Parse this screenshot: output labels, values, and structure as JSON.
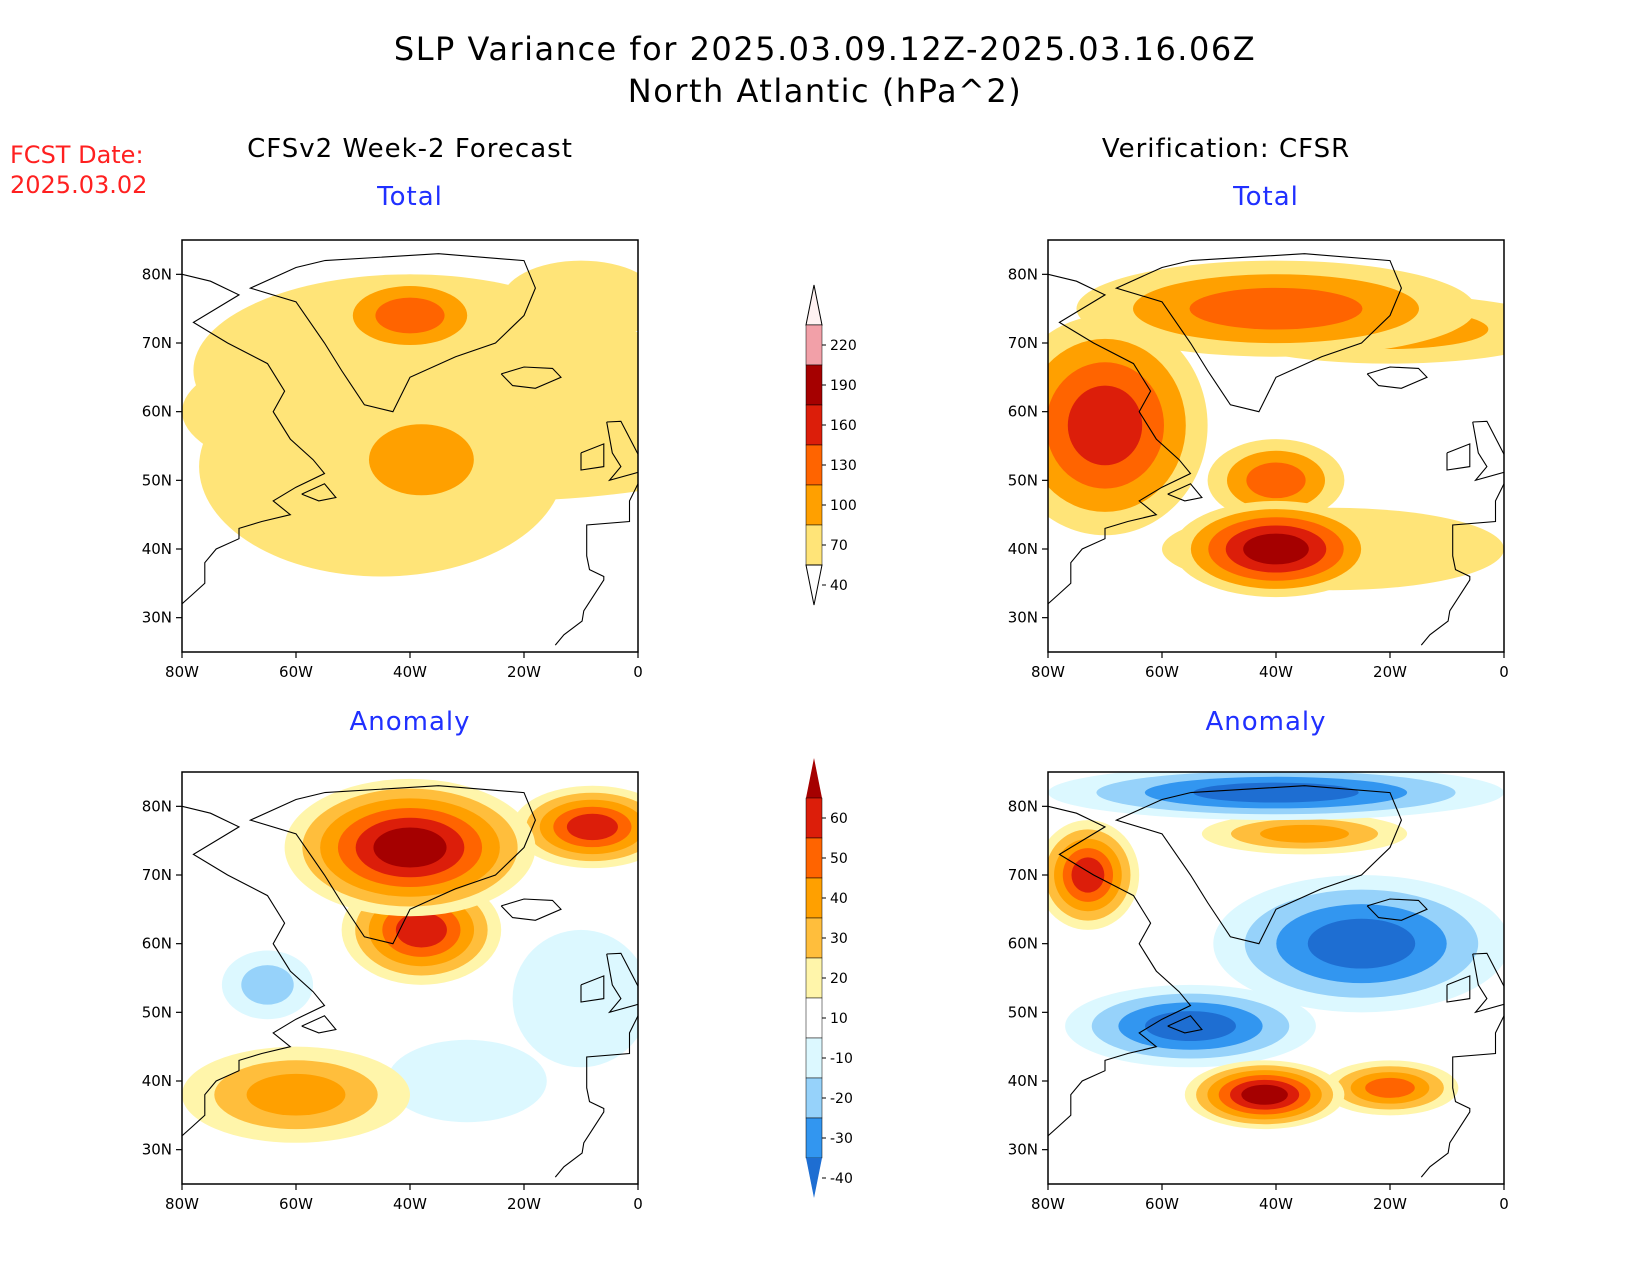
{
  "header": {
    "title_line1": "SLP Variance for 2025.03.09.12Z-2025.03.16.06Z",
    "title_line2": "North Atlantic (hPa^2)",
    "fcst_label": "FCST Date:",
    "fcst_date": "2025.03.02",
    "left_column": "CFSv2 Week-2 Forecast",
    "right_column": "Verification: CFSR"
  },
  "chart_data": [
    {
      "type": "heatmap",
      "id": "fcst-total",
      "title": "Total",
      "x_ticks": [
        "80W",
        "60W",
        "40W",
        "20W",
        "0"
      ],
      "y_ticks": [
        "80N",
        "70N",
        "60N",
        "50N",
        "40N",
        "30N"
      ],
      "lon_range": [
        -80,
        0
      ],
      "lat_range": [
        25,
        85
      ],
      "scale": "total",
      "blobs": [
        {
          "lon": -40,
          "lat": 66,
          "rx": 38,
          "ry": 14,
          "value": 50
        },
        {
          "lon": -25,
          "lat": 60,
          "rx": 55,
          "ry": 13,
          "value": 45
        },
        {
          "lon": -45,
          "lat": 52,
          "rx": 32,
          "ry": 16,
          "value": 60
        },
        {
          "lon": -40,
          "lat": 74,
          "rx": 14,
          "ry": 6,
          "value": 100
        },
        {
          "lon": -38,
          "lat": 53,
          "rx": 16,
          "ry": 9,
          "value": 70
        },
        {
          "lon": -10,
          "lat": 76,
          "rx": 14,
          "ry": 6,
          "value": 40
        }
      ]
    },
    {
      "type": "heatmap",
      "id": "verif-total",
      "title": "Total",
      "x_ticks": [
        "80W",
        "60W",
        "40W",
        "20W",
        "0"
      ],
      "y_ticks": [
        "80N",
        "70N",
        "60N",
        "50N",
        "40N",
        "30N"
      ],
      "lon_range": [
        -80,
        0
      ],
      "lat_range": [
        25,
        85
      ],
      "scale": "total",
      "blobs": [
        {
          "lon": -40,
          "lat": 75,
          "rx": 35,
          "ry": 7,
          "value": 110
        },
        {
          "lon": -70,
          "lat": 58,
          "rx": 18,
          "ry": 16,
          "value": 130
        },
        {
          "lon": -40,
          "lat": 40,
          "rx": 18,
          "ry": 7,
          "value": 160
        },
        {
          "lon": -40,
          "lat": 50,
          "rx": 12,
          "ry": 6,
          "value": 100
        },
        {
          "lon": -20,
          "lat": 72,
          "rx": 30,
          "ry": 5,
          "value": 80
        },
        {
          "lon": -30,
          "lat": 40,
          "rx": 30,
          "ry": 6,
          "value": 60
        }
      ]
    },
    {
      "type": "heatmap",
      "id": "fcst-anomaly",
      "title": "Anomaly",
      "x_ticks": [
        "80W",
        "60W",
        "40W",
        "20W",
        "0"
      ],
      "y_ticks": [
        "80N",
        "70N",
        "60N",
        "50N",
        "40N",
        "30N"
      ],
      "lon_range": [
        -80,
        0
      ],
      "lat_range": [
        25,
        85
      ],
      "scale": "anomaly",
      "blobs": [
        {
          "lon": -40,
          "lat": 74,
          "rx": 22,
          "ry": 10,
          "value": 70
        },
        {
          "lon": -38,
          "lat": 62,
          "rx": 14,
          "ry": 8,
          "value": 50
        },
        {
          "lon": -60,
          "lat": 38,
          "rx": 20,
          "ry": 7,
          "value": 30
        },
        {
          "lon": -8,
          "lat": 77,
          "rx": 14,
          "ry": 6,
          "value": 50
        },
        {
          "lon": -65,
          "lat": 54,
          "rx": 8,
          "ry": 5,
          "value": -20
        },
        {
          "lon": -10,
          "lat": 52,
          "rx": 12,
          "ry": 10,
          "value": -15
        },
        {
          "lon": -30,
          "lat": 40,
          "rx": 14,
          "ry": 6,
          "value": -12
        }
      ]
    },
    {
      "type": "heatmap",
      "id": "verif-anomaly",
      "title": "Anomaly",
      "x_ticks": [
        "80W",
        "60W",
        "40W",
        "20W",
        "0"
      ],
      "y_ticks": [
        "80N",
        "70N",
        "60N",
        "50N",
        "40N",
        "30N"
      ],
      "lon_range": [
        -80,
        0
      ],
      "lat_range": [
        25,
        85
      ],
      "scale": "anomaly",
      "blobs": [
        {
          "lon": -25,
          "lat": 60,
          "rx": 26,
          "ry": 10,
          "value": -40
        },
        {
          "lon": -55,
          "lat": 48,
          "rx": 22,
          "ry": 6,
          "value": -40
        },
        {
          "lon": -40,
          "lat": 82,
          "rx": 40,
          "ry": 4,
          "value": -40
        },
        {
          "lon": -42,
          "lat": 38,
          "rx": 14,
          "ry": 5,
          "value": 70
        },
        {
          "lon": -73,
          "lat": 70,
          "rx": 9,
          "ry": 8,
          "value": 55
        },
        {
          "lon": -35,
          "lat": 76,
          "rx": 18,
          "ry": 3,
          "value": 30
        },
        {
          "lon": -20,
          "lat": 39,
          "rx": 12,
          "ry": 4,
          "value": 40
        }
      ]
    }
  ],
  "colorbars": {
    "total": {
      "labels": [
        "220",
        "190",
        "160",
        "130",
        "100",
        "70",
        "40"
      ],
      "colors": [
        "#fff2f2",
        "#f2a0a8",
        "#a50000",
        "#dc1e0a",
        "#ff6400",
        "#ffa000",
        "#ffe478"
      ]
    },
    "anomaly": {
      "labels": [
        "60",
        "50",
        "40",
        "30",
        "20",
        "10",
        "-10",
        "-20",
        "-30",
        "-40"
      ],
      "colors": [
        "#a50000",
        "#dc1e0a",
        "#ff6400",
        "#ffa000",
        "#ffbe3c",
        "#fff5aa",
        "#ffffff",
        "#dcf8ff",
        "#96d2fa",
        "#3296f0",
        "#1e6ed2"
      ]
    }
  }
}
